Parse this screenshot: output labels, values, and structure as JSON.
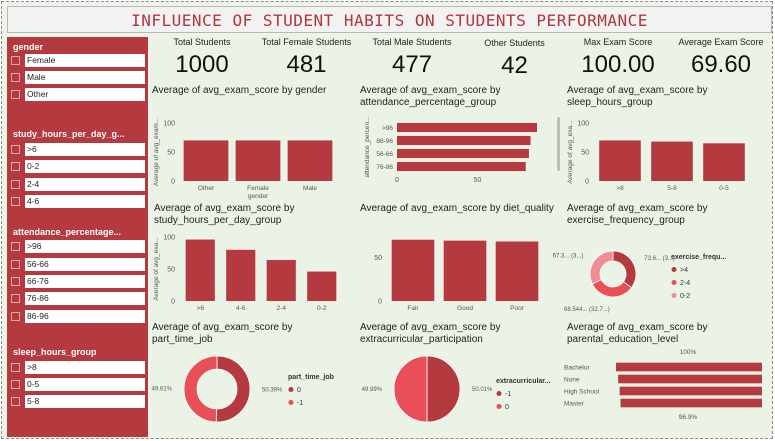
{
  "title": "INFLUENCE OF STUDENT HABITS ON STUDENTS PERFORMANCE",
  "colors": {
    "bar": "#b53a3f",
    "dark": "#b53a3f",
    "mid": "#e84f57",
    "light": "#f08e93",
    "sidebar": "#b53a3f"
  },
  "slicers": [
    {
      "title": "gender",
      "items": [
        "Female",
        "Male",
        "Other"
      ]
    },
    {
      "title": "study_hours_per_day_g...",
      "items": [
        ">6",
        "0-2",
        "2-4",
        "4-6"
      ]
    },
    {
      "title": "attendance_percentage...",
      "items": [
        ">96",
        "56-66",
        "66-76",
        "76-86",
        "86-96"
      ]
    },
    {
      "title": "sleep_hours_group",
      "items": [
        ">8",
        "0-5",
        "5-8"
      ]
    }
  ],
  "kpis": [
    {
      "label": "Total Students",
      "value": "1000"
    },
    {
      "label": "Total Female Students",
      "value": "481"
    },
    {
      "label": "Total Male Students",
      "value": "477"
    },
    {
      "label": "Other Students",
      "value": "42"
    },
    {
      "label": "Max Exam Score",
      "value": "100.00"
    },
    {
      "label": "Average Exam Score",
      "value": "69.60"
    }
  ],
  "chart_data": [
    {
      "id": "gender",
      "type": "bar",
      "title": "Average of avg_exam_score by gender",
      "categories": [
        "Other",
        "Female",
        "Male"
      ],
      "values": [
        70,
        70,
        70
      ],
      "ylabel": "Average of avg_exam...",
      "xlabel": "gender",
      "ylim": [
        0,
        100
      ],
      "yticks": [
        0,
        50,
        100
      ]
    },
    {
      "id": "attendance",
      "type": "bar",
      "orientation": "horizontal",
      "title": "Average of avg_exam_score by attendance_percentage_group",
      "categories": [
        ">96",
        "86-96",
        "56-66",
        "76-86"
      ],
      "values": [
        87,
        83,
        82,
        80
      ],
      "ylabel": "attendance_percen...",
      "xlim": [
        0,
        87
      ],
      "xticks": [
        0,
        50
      ]
    },
    {
      "id": "sleep",
      "type": "bar",
      "title": "Average of avg_exam_score by sleep_hours_group",
      "categories": [
        ">8",
        "5-8",
        "0-5"
      ],
      "values": [
        70,
        68,
        65
      ],
      "ylabel": "Average of avg_exa...",
      "ylim": [
        0,
        100
      ],
      "yticks": [
        0,
        50,
        100
      ]
    },
    {
      "id": "study",
      "type": "bar",
      "title": "Average of avg_exam_score by study_hours_per_day_group",
      "categories": [
        ">6",
        "4-6",
        "2-4",
        "0-2"
      ],
      "values": [
        96,
        80,
        64,
        46
      ],
      "ylabel": "Average of avg_exa...",
      "ylim": [
        0,
        100
      ],
      "yticks": [
        0,
        50,
        100
      ]
    },
    {
      "id": "diet",
      "type": "bar",
      "title": "Average of avg_exam_score by diet_quality",
      "categories": [
        "Fair",
        "Good",
        "Poor"
      ],
      "values": [
        70,
        69,
        68
      ],
      "ylim": [
        0,
        80
      ],
      "yticks": [
        0,
        50
      ]
    },
    {
      "id": "exercise",
      "type": "pie",
      "donut": true,
      "title": "Average of avg_exam_score by exercise_frequency_group",
      "legend_title": "exercise_frequ...",
      "labels": [
        ">4",
        "2-4",
        "0-2"
      ],
      "values": [
        73.6,
        68.544,
        67.3
      ],
      "slice_labels": [
        "73.6... (3...)",
        "68.544... (32.7...)",
        "67.3... (3...)"
      ],
      "colors": [
        "#b53a3f",
        "#e84f57",
        "#f08e93"
      ]
    },
    {
      "id": "parttime",
      "type": "pie",
      "donut": true,
      "title": "Average of avg_exam_score by part_time_job",
      "legend_title": "part_time_job",
      "labels": [
        "0",
        "-1"
      ],
      "values": [
        50.39,
        49.61
      ],
      "slice_labels": [
        "50.39%",
        "49.61%"
      ],
      "colors": [
        "#b53a3f",
        "#e84f57"
      ]
    },
    {
      "id": "extracurricular",
      "type": "pie",
      "donut": false,
      "title": "Average of avg_exam_score by extracurricular_participation",
      "legend_title": "extracurricular...",
      "labels": [
        "-1",
        "0"
      ],
      "values": [
        50.01,
        49.99
      ],
      "slice_labels": [
        "50.01%",
        "49.99%"
      ],
      "colors": [
        "#b53a3f",
        "#e84f57"
      ]
    },
    {
      "id": "parental",
      "type": "bar",
      "orientation": "horizontal",
      "title": "Average of avg_exam_score by parental_education_level",
      "categories": [
        "Bachelor",
        "None",
        "High School",
        "Master"
      ],
      "values": [
        100,
        98.5,
        97.5,
        96.9
      ],
      "top_label": "100%",
      "bottom_label": "96.9%"
    }
  ]
}
